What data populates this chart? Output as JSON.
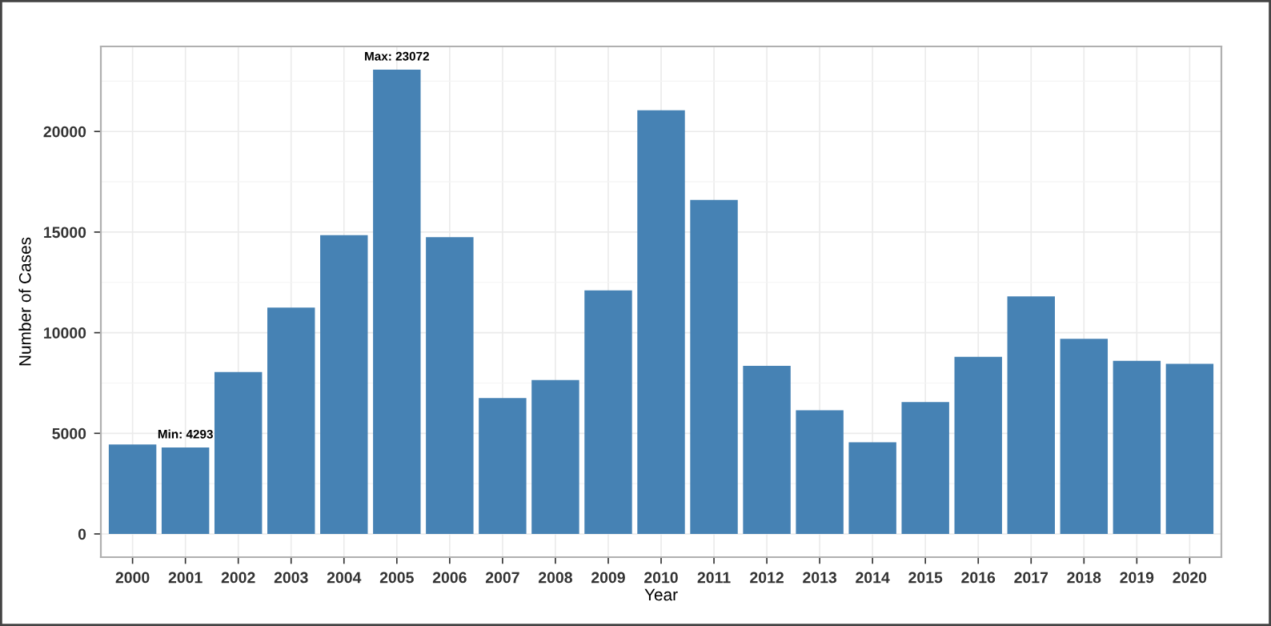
{
  "chart_data": {
    "type": "bar",
    "xlabel": "Year",
    "ylabel": "Number of Cases",
    "categories": [
      "2000",
      "2001",
      "2002",
      "2003",
      "2004",
      "2005",
      "2006",
      "2007",
      "2008",
      "2009",
      "2010",
      "2011",
      "2012",
      "2013",
      "2014",
      "2015",
      "2016",
      "2017",
      "2018",
      "2019",
      "2020"
    ],
    "values": [
      4450,
      4293,
      8050,
      11250,
      14850,
      23072,
      14750,
      6750,
      7650,
      12100,
      21050,
      16600,
      8350,
      6150,
      4550,
      6550,
      8800,
      11800,
      9700,
      8600,
      8450
    ],
    "color": "#4682b4",
    "ylim": [
      -1154,
      24226
    ],
    "yticks": [
      0,
      5000,
      10000,
      15000,
      20000
    ],
    "grid": true,
    "annotations": [
      {
        "text": "Min: 4293",
        "x": "2001",
        "y": 4293
      },
      {
        "text": "Max: 23072",
        "x": "2005",
        "y": 23072
      }
    ]
  }
}
